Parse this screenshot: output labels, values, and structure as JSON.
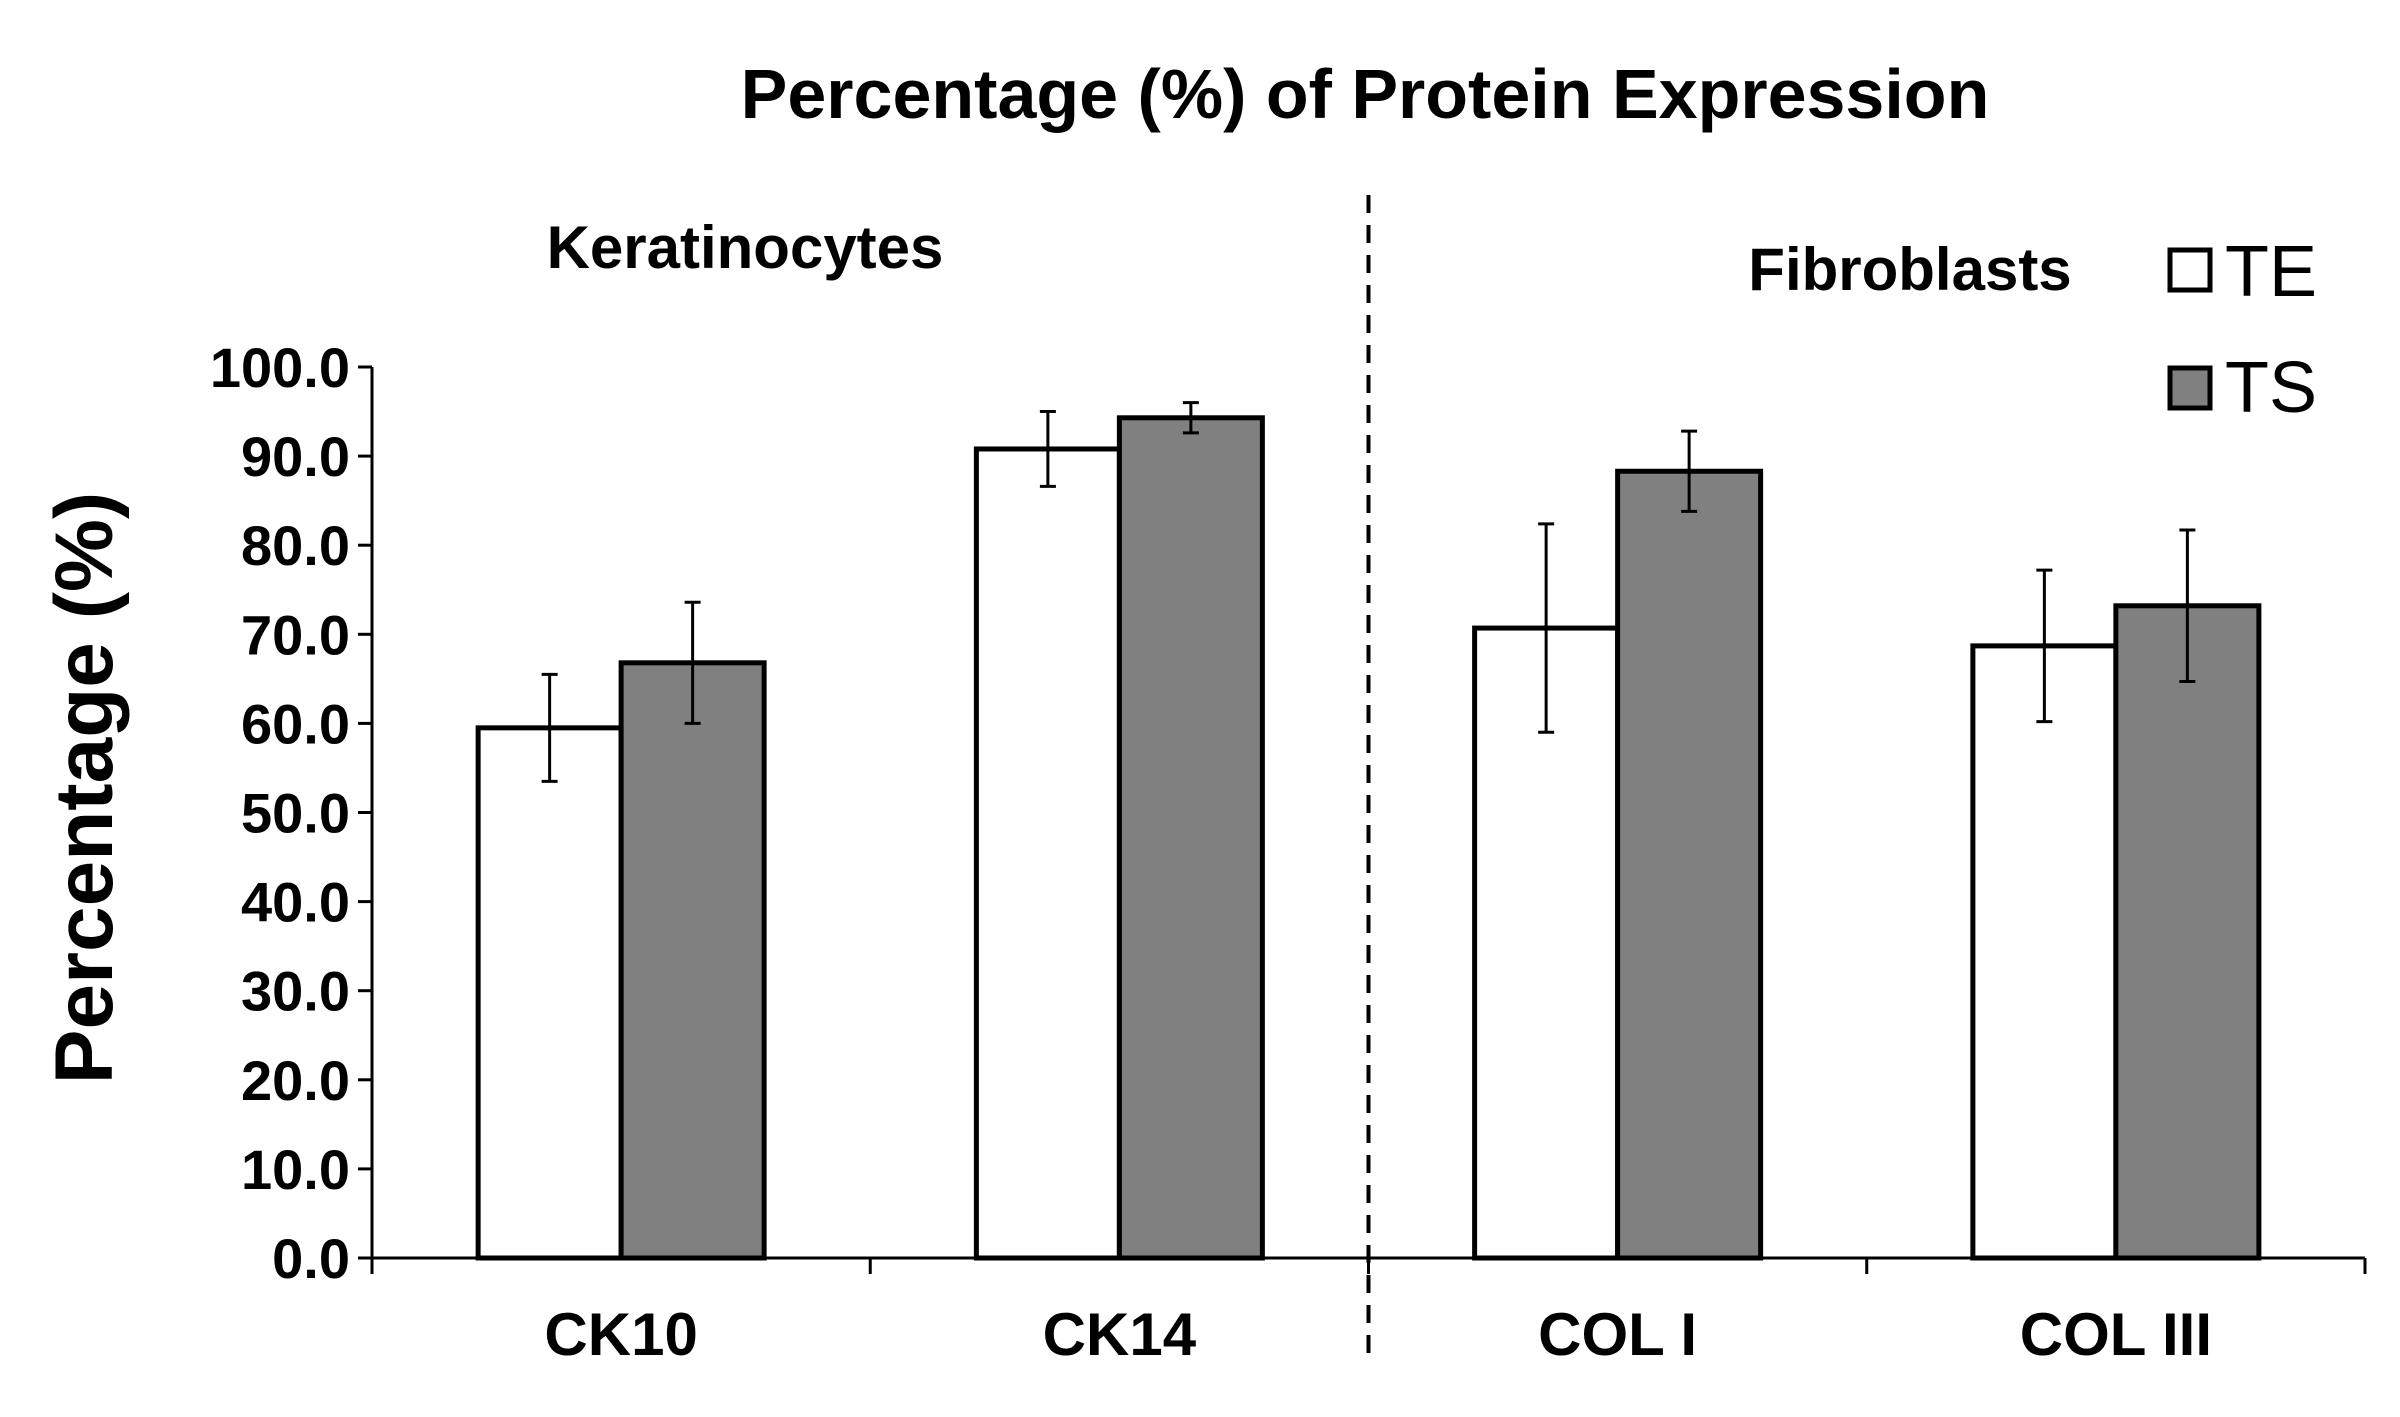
{
  "chart_data": {
    "type": "bar",
    "title": "Percentage (%) of Protein Expression",
    "ylabel": "Percentage  (%)",
    "xlabel": "",
    "ylim": [
      0,
      100
    ],
    "yticks": [
      "0.0",
      "10.0",
      "20.0",
      "30.0",
      "40.0",
      "50.0",
      "60.0",
      "70.0",
      "80.0",
      "90.0",
      "100.0"
    ],
    "categories": [
      "CK10",
      "CK14",
      "COL I",
      "COL III"
    ],
    "groups": [
      {
        "label": "Keratinocytes",
        "categories": [
          "CK10",
          "CK14"
        ]
      },
      {
        "label": "Fibroblasts",
        "categories": [
          "COL I",
          "COL III"
        ]
      }
    ],
    "series": [
      {
        "name": "TE",
        "color": "#ffffff",
        "values": [
          59.5,
          90.8,
          70.7,
          68.7
        ],
        "errors": [
          6.0,
          4.2,
          11.7,
          8.5
        ]
      },
      {
        "name": "TS",
        "color": "#808080",
        "values": [
          66.8,
          94.3,
          88.3,
          73.2
        ],
        "errors": [
          6.8,
          1.7,
          4.5,
          8.5
        ]
      }
    ],
    "legend_position": "top-right",
    "grid": false,
    "group_divider": "dashed"
  }
}
